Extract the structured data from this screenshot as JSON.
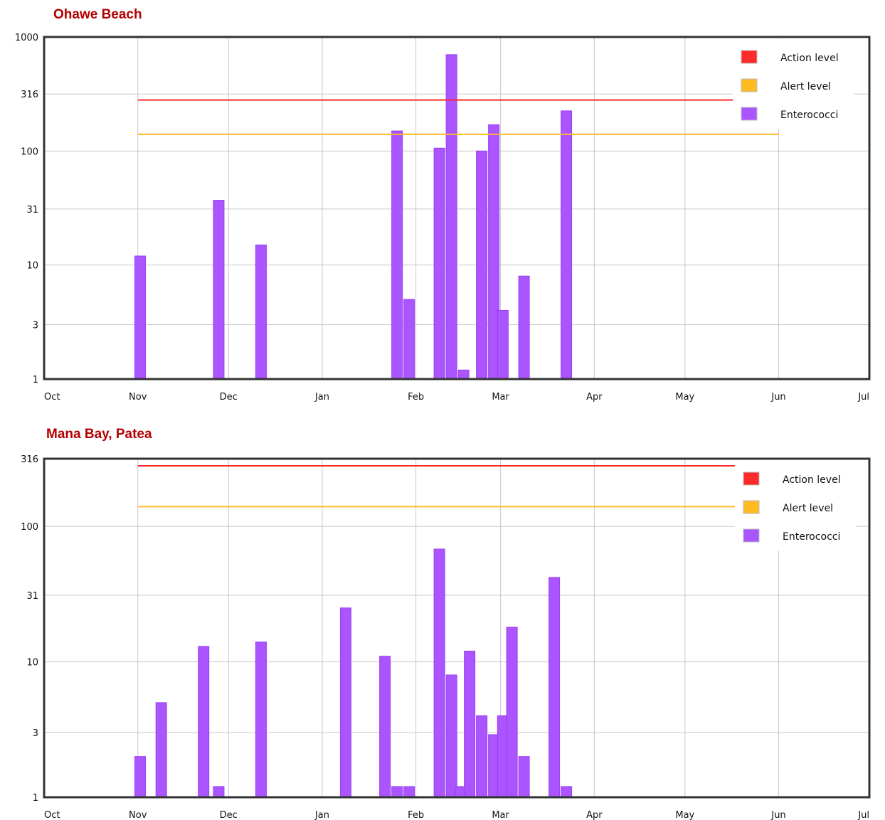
{
  "chart_data": [
    {
      "type": "bar",
      "title": "Ohawe Beach",
      "yscale": "log",
      "ylim": [
        1,
        1000
      ],
      "yticks": [
        1,
        3,
        10,
        31,
        100,
        316,
        1000
      ],
      "xticks": [
        "Oct",
        "Nov",
        "Dec",
        "Jan",
        "Feb",
        "Mar",
        "Apr",
        "May",
        "Jun",
        "Jul"
      ],
      "colors": {
        "action": "#ff2a2a",
        "alert": "#ffbb22",
        "bars": "#aa55ff"
      },
      "legend": {
        "position": "top-right",
        "entries": [
          "Action level",
          "Alert level",
          "Enterococci"
        ]
      },
      "thresholds": [
        {
          "name": "Action level",
          "value": 280,
          "from": "2021-11-01",
          "to": "2022-06-01"
        },
        {
          "name": "Alert level",
          "value": 140,
          "from": "2021-11-01",
          "to": "2022-06-01"
        }
      ],
      "series": [
        {
          "name": "Enterococci",
          "values": [
            {
              "date": "2021-10-31",
              "value": 12
            },
            {
              "date": "2021-11-26",
              "value": 37
            },
            {
              "date": "2021-12-10",
              "value": 15
            },
            {
              "date": "2022-01-24",
              "value": 150
            },
            {
              "date": "2022-01-28",
              "value": 5
            },
            {
              "date": "2022-02-07",
              "value": 106
            },
            {
              "date": "2022-02-11",
              "value": 700
            },
            {
              "date": "2022-02-15",
              "value": 1.2
            },
            {
              "date": "2022-02-21",
              "value": 100
            },
            {
              "date": "2022-02-25",
              "value": 170
            },
            {
              "date": "2022-02-28",
              "value": 4
            },
            {
              "date": "2022-03-07",
              "value": 8
            },
            {
              "date": "2022-03-21",
              "value": 225
            }
          ]
        }
      ]
    },
    {
      "type": "bar",
      "title": "Mana Bay, Patea",
      "yscale": "log",
      "ylim": [
        1,
        316
      ],
      "yticks": [
        1,
        3,
        10,
        31,
        100,
        316
      ],
      "xticks": [
        "Oct",
        "Nov",
        "Dec",
        "Jan",
        "Feb",
        "Mar",
        "Apr",
        "May",
        "Jun",
        "Jul"
      ],
      "colors": {
        "action": "#ff2a2a",
        "alert": "#ffbb22",
        "bars": "#aa55ff"
      },
      "legend": {
        "position": "top-right",
        "entries": [
          "Action level",
          "Alert level",
          "Enterococci"
        ]
      },
      "thresholds": [
        {
          "name": "Action level",
          "value": 280,
          "from": "2021-11-01",
          "to": "2022-06-01"
        },
        {
          "name": "Alert level",
          "value": 140,
          "from": "2021-11-01",
          "to": "2022-06-01"
        }
      ],
      "series": [
        {
          "name": "Enterococci",
          "values": [
            {
              "date": "2021-10-31",
              "value": 2
            },
            {
              "date": "2021-11-07",
              "value": 5
            },
            {
              "date": "2021-11-21",
              "value": 13
            },
            {
              "date": "2021-11-26",
              "value": 1.2
            },
            {
              "date": "2021-12-10",
              "value": 14
            },
            {
              "date": "2022-01-07",
              "value": 25
            },
            {
              "date": "2022-01-20",
              "value": 11
            },
            {
              "date": "2022-01-24",
              "value": 1.2
            },
            {
              "date": "2022-01-28",
              "value": 1.2
            },
            {
              "date": "2022-02-07",
              "value": 68
            },
            {
              "date": "2022-02-11",
              "value": 8
            },
            {
              "date": "2022-02-14",
              "value": 1.2
            },
            {
              "date": "2022-02-17",
              "value": 12
            },
            {
              "date": "2022-02-21",
              "value": 4
            },
            {
              "date": "2022-02-25",
              "value": 2.9
            },
            {
              "date": "2022-02-28",
              "value": 4
            },
            {
              "date": "2022-03-03",
              "value": 18
            },
            {
              "date": "2022-03-07",
              "value": 2
            },
            {
              "date": "2022-03-17",
              "value": 42
            },
            {
              "date": "2022-03-21",
              "value": 1.2
            }
          ]
        }
      ]
    }
  ]
}
